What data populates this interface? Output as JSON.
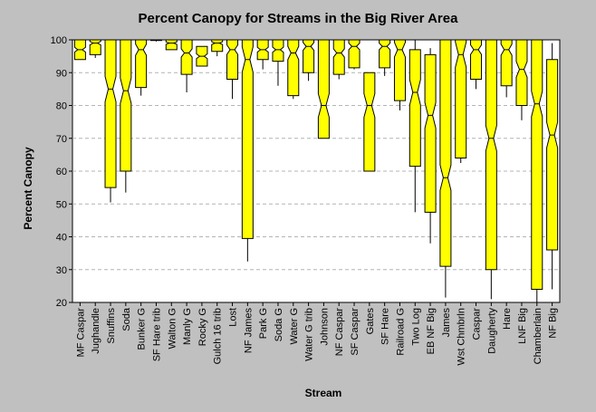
{
  "chart_data": {
    "type": "boxplot",
    "title": "Percent Canopy for Streams in the Big River Area",
    "xlabel": "Stream",
    "ylabel": "Percent Canopy",
    "ylim": [
      20,
      100
    ],
    "yticks": [
      20,
      30,
      40,
      50,
      60,
      70,
      80,
      90,
      100
    ],
    "grid": true,
    "box_color": "#ffff00",
    "background_color": "#c0c0c0",
    "plot_background": "#ffffff",
    "grid_color": "#b4b4b4",
    "series": [
      {
        "category": "MF Caspar",
        "whisker_low": 94,
        "q1": 94,
        "median": 97,
        "q3": 100,
        "whisker_high": 100
      },
      {
        "category": "Jughandle",
        "whisker_low": 94.5,
        "q1": 95.5,
        "median": 99,
        "q3": 100,
        "whisker_high": 100
      },
      {
        "category": "Snuffins",
        "whisker_low": 50.5,
        "q1": 55,
        "median": 85,
        "q3": 100,
        "whisker_high": 100
      },
      {
        "category": "Soda",
        "whisker_low": 53.5,
        "q1": 60,
        "median": 84.5,
        "q3": 100,
        "whisker_high": 100
      },
      {
        "category": "Bunker G",
        "whisker_low": 83,
        "q1": 85.5,
        "median": 97,
        "q3": 100,
        "whisker_high": 100
      },
      {
        "category": "SF Hare trib",
        "whisker_low": 99.5,
        "q1": 99.8,
        "median": 100,
        "q3": 100,
        "whisker_high": 100
      },
      {
        "category": "Walton G",
        "whisker_low": 97,
        "q1": 97,
        "median": 99,
        "q3": 100,
        "whisker_high": 100
      },
      {
        "category": "Manly G",
        "whisker_low": 84,
        "q1": 89.5,
        "median": 96,
        "q3": 100,
        "whisker_high": 100
      },
      {
        "category": "Rocky G",
        "whisker_low": 92,
        "q1": 92,
        "median": 95,
        "q3": 98,
        "whisker_high": 98
      },
      {
        "category": "Gulch 16 trib",
        "whisker_low": 95,
        "q1": 96.5,
        "median": 99,
        "q3": 100,
        "whisker_high": 100
      },
      {
        "category": "Lost",
        "whisker_low": 82,
        "q1": 88,
        "median": 97,
        "q3": 100,
        "whisker_high": 100
      },
      {
        "category": "NF James",
        "whisker_low": 32.5,
        "q1": 39.5,
        "median": 94,
        "q3": 100,
        "whisker_high": 100
      },
      {
        "category": "Park G",
        "whisker_low": 91,
        "q1": 94,
        "median": 97,
        "q3": 100,
        "whisker_high": 100
      },
      {
        "category": "Soda G",
        "whisker_low": 86,
        "q1": 93.5,
        "median": 97,
        "q3": 100,
        "whisker_high": 100
      },
      {
        "category": "Water G",
        "whisker_low": 82,
        "q1": 83,
        "median": 96,
        "q3": 100,
        "whisker_high": 100
      },
      {
        "category": "Water G trib",
        "whisker_low": 87.5,
        "q1": 90,
        "median": 98,
        "q3": 100,
        "whisker_high": 100
      },
      {
        "category": "Johnson",
        "whisker_low": 70,
        "q1": 70,
        "median": 80,
        "q3": 100,
        "whisker_high": 100
      },
      {
        "category": "NF Caspar",
        "whisker_low": 88,
        "q1": 89.5,
        "median": 96,
        "q3": 100,
        "whisker_high": 100
      },
      {
        "category": "SF Caspar",
        "whisker_low": 91,
        "q1": 91.5,
        "median": 98,
        "q3": 100,
        "whisker_high": 100
      },
      {
        "category": "Gates",
        "whisker_low": 60,
        "q1": 60,
        "median": 80,
        "q3": 90,
        "whisker_high": 90
      },
      {
        "category": "SF Hare",
        "whisker_low": 89,
        "q1": 91.5,
        "median": 98,
        "q3": 100,
        "whisker_high": 100
      },
      {
        "category": "Railroad G",
        "whisker_low": 78.5,
        "q1": 81.5,
        "median": 97,
        "q3": 100,
        "whisker_high": 100
      },
      {
        "category": "Two Log",
        "whisker_low": 47.5,
        "q1": 61.5,
        "median": 84,
        "q3": 97,
        "whisker_high": 100
      },
      {
        "category": "EB NF Big",
        "whisker_low": 38,
        "q1": 47.5,
        "median": 77,
        "q3": 95.5,
        "whisker_high": 97.5
      },
      {
        "category": "James",
        "whisker_low": 21.5,
        "q1": 31,
        "median": 58,
        "q3": 100,
        "whisker_high": 100
      },
      {
        "category": "Wst Chmbrln",
        "whisker_low": 62.5,
        "q1": 64,
        "median": 95.5,
        "q3": 100,
        "whisker_high": 100
      },
      {
        "category": "Caspar",
        "whisker_low": 85,
        "q1": 88,
        "median": 97,
        "q3": 100,
        "whisker_high": 100
      },
      {
        "category": "Daugherty",
        "whisker_low": 21,
        "q1": 30,
        "median": 70,
        "q3": 100,
        "whisker_high": 100
      },
      {
        "category": "Hare",
        "whisker_low": 82.5,
        "q1": 86,
        "median": 97,
        "q3": 100,
        "whisker_high": 100
      },
      {
        "category": "LNF Big",
        "whisker_low": 75.5,
        "q1": 80,
        "median": 91,
        "q3": 100,
        "whisker_high": 100
      },
      {
        "category": "Chamberlain",
        "whisker_low": 20,
        "q1": 24,
        "median": 80.5,
        "q3": 100,
        "whisker_high": 100
      },
      {
        "category": "NF Big",
        "whisker_low": 24,
        "q1": 36,
        "median": 71,
        "q3": 94,
        "whisker_high": 99
      }
    ]
  }
}
